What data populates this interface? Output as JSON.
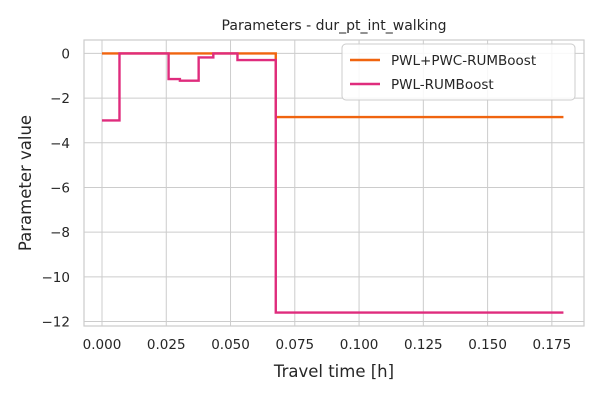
{
  "chart_data": {
    "type": "line",
    "title": "Parameters - dur_pt_int_walking",
    "xlabel": "Travel time [h]",
    "ylabel": "Parameter value",
    "xlim": [
      -0.007,
      0.1875
    ],
    "ylim": [
      -12.2,
      0.6
    ],
    "x_ticks": [
      0.0,
      0.025,
      0.05,
      0.075,
      0.1,
      0.125,
      0.15,
      0.175
    ],
    "x_tick_labels": [
      "0.000",
      "0.025",
      "0.050",
      "0.075",
      "0.100",
      "0.125",
      "0.150",
      "0.175"
    ],
    "y_ticks": [
      0,
      -2,
      -4,
      -6,
      -8,
      -10,
      -12
    ],
    "y_tick_labels": [
      "0",
      "−2",
      "−4",
      "−6",
      "−8",
      "−10",
      "−12"
    ],
    "grid": true,
    "legend_position": "top-right",
    "series": [
      {
        "name": "PWL+PWC-RUMBoost",
        "color": "#f0640f",
        "x": [
          0.0,
          0.0676,
          0.0676,
          0.1795
        ],
        "y": [
          0.0,
          0.0,
          -2.85,
          -2.85
        ]
      },
      {
        "name": "PWL-RUMBoost",
        "color": "#df2c7d",
        "x": [
          0.0,
          0.0068,
          0.0068,
          0.0259,
          0.0259,
          0.0303,
          0.0303,
          0.0376,
          0.0376,
          0.0433,
          0.0433,
          0.0527,
          0.0527,
          0.0676,
          0.0676,
          0.1795
        ],
        "y": [
          -3.0,
          -3.0,
          0.0,
          0.0,
          -1.15,
          -1.15,
          -1.22,
          -1.22,
          -0.18,
          -0.18,
          0.0,
          0.0,
          -0.3,
          -0.3,
          -11.6,
          -11.6
        ]
      }
    ]
  }
}
